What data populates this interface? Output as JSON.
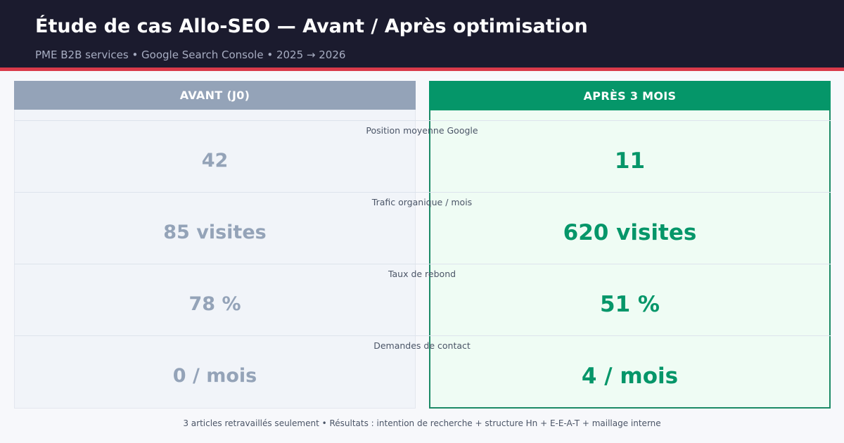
{
  "header": {
    "title": "Étude de cas Allo-SEO — Avant / Après optimisation",
    "subtitle": "PME B2B services • Google Search Console • 2025 → 2026"
  },
  "columns": {
    "before_label": "AVANT (J0)",
    "after_label": "APRÈS 3 MOIS"
  },
  "metrics": [
    {
      "label": "Position moyenne Google",
      "before": "42",
      "after": "11"
    },
    {
      "label": "Trafic organique / mois",
      "before": "85 visites",
      "after": "620 visites"
    },
    {
      "label": "Taux de rebond",
      "before": "78 %",
      "after": "51 %"
    },
    {
      "label": "Demandes de contact",
      "before": "0 / mois",
      "after": "4 / mois"
    }
  ],
  "footer": "3 articles retravaillés seulement • Résultats : intention de recherche + structure Hn + E-E-A-T + maillage interne",
  "colors": {
    "header_bg": "#1b1b2e",
    "accent_red": "#d93a4a",
    "before_gray": "#94a3b8",
    "after_green": "#059669"
  }
}
